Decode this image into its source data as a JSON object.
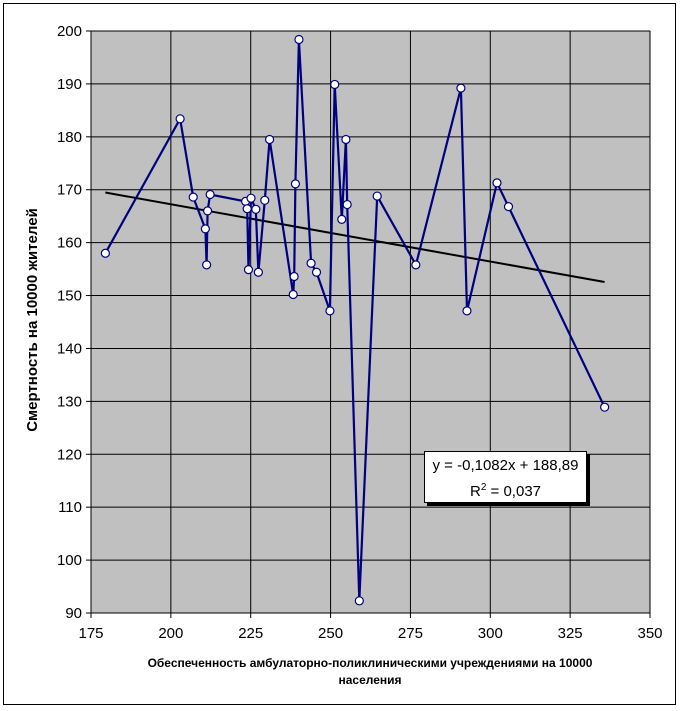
{
  "chart_data": {
    "type": "scatter",
    "title": "",
    "xlabel_line1": "Обеспеченность амбулаторно-поликлиническими учреждениями на 10000",
    "xlabel_line2": "населения",
    "ylabel": "Смертность на 10000 жителей",
    "xlim": [
      175,
      350
    ],
    "ylim": [
      90,
      200
    ],
    "x_ticks": [
      175,
      200,
      225,
      250,
      275,
      300,
      325,
      350
    ],
    "y_ticks": [
      90,
      100,
      110,
      120,
      130,
      140,
      150,
      160,
      170,
      180,
      190,
      200
    ],
    "grid": true,
    "plot_background": "#c0c0c0",
    "series_color": "#000080",
    "trend_color": "#000000",
    "series": [
      {
        "points": [
          {
            "x": 179.5,
            "y": 158.0
          },
          {
            "x": 202.9,
            "y": 183.4
          },
          {
            "x": 207.0,
            "y": 168.6
          },
          {
            "x": 210.8,
            "y": 162.6
          },
          {
            "x": 211.2,
            "y": 155.8
          },
          {
            "x": 211.5,
            "y": 166.0
          },
          {
            "x": 212.3,
            "y": 169.1
          },
          {
            "x": 223.4,
            "y": 167.8
          },
          {
            "x": 223.9,
            "y": 166.4
          },
          {
            "x": 224.3,
            "y": 154.9
          },
          {
            "x": 225.1,
            "y": 168.4
          },
          {
            "x": 226.6,
            "y": 166.3
          },
          {
            "x": 227.4,
            "y": 154.4
          },
          {
            "x": 229.4,
            "y": 168.0
          },
          {
            "x": 230.9,
            "y": 179.5
          },
          {
            "x": 238.3,
            "y": 150.2
          },
          {
            "x": 238.6,
            "y": 153.6
          },
          {
            "x": 239.0,
            "y": 171.1
          },
          {
            "x": 240.1,
            "y": 198.4
          },
          {
            "x": 243.9,
            "y": 156.1
          },
          {
            "x": 245.6,
            "y": 154.4
          },
          {
            "x": 249.8,
            "y": 147.1
          },
          {
            "x": 251.3,
            "y": 189.9
          },
          {
            "x": 253.5,
            "y": 164.4
          },
          {
            "x": 254.8,
            "y": 179.5
          },
          {
            "x": 255.2,
            "y": 167.2
          },
          {
            "x": 259.0,
            "y": 92.3
          },
          {
            "x": 264.6,
            "y": 168.8
          },
          {
            "x": 276.7,
            "y": 155.8
          },
          {
            "x": 290.8,
            "y": 189.2
          },
          {
            "x": 292.7,
            "y": 147.1
          },
          {
            "x": 302.1,
            "y": 171.3
          },
          {
            "x": 305.7,
            "y": 166.8
          },
          {
            "x": 335.8,
            "y": 128.9
          }
        ]
      }
    ],
    "trendline": {
      "slope": -0.1082,
      "intercept": 188.89,
      "x_start": 179.5,
      "x_end": 335.8
    },
    "annotation": {
      "equation": "y = -0,1082x + 188,89",
      "r2_prefix": "R",
      "r2_sup": "2",
      "r2_suffix": " = 0,037"
    }
  }
}
